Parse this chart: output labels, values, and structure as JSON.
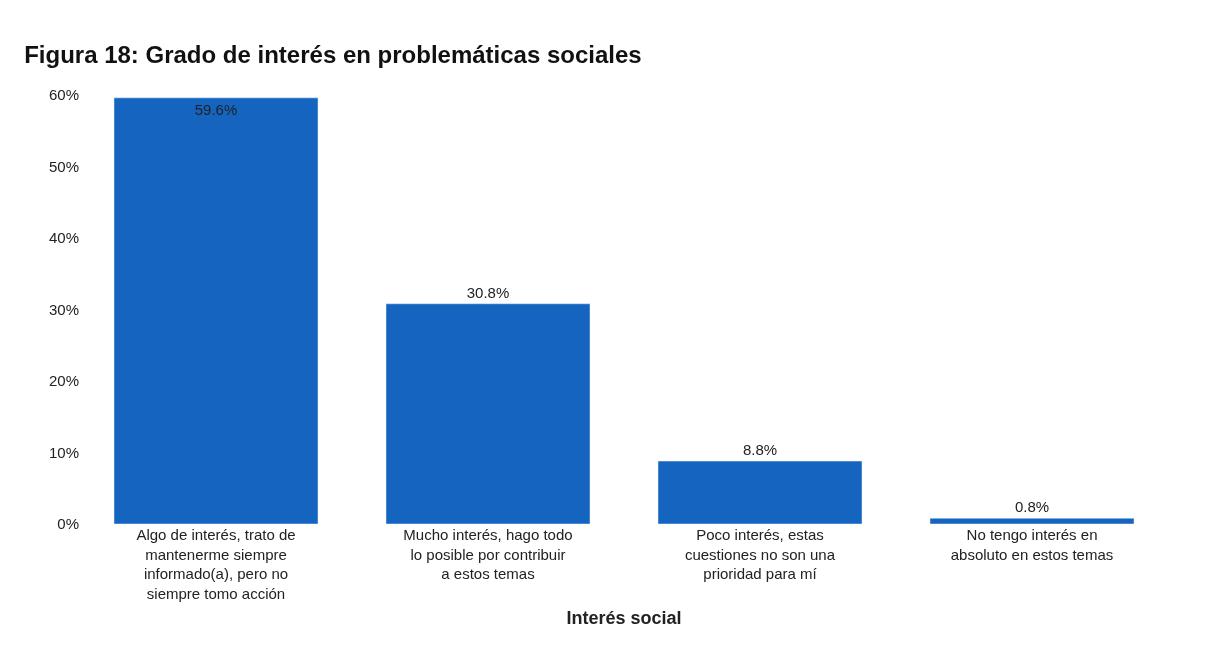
{
  "chart_data": {
    "type": "bar",
    "title": "Figura 18: Grado de interés en problemáticas sociales",
    "xlabel": "Interés social",
    "categories": [
      "Algo de interés, trato de mantenerme siempre informado(a), pero no siempre tomo acción",
      "Mucho interés, hago todo lo posible por contribuir a estos temas",
      "Poco interés, estas cuestiones no son una prioridad para mí",
      "No tengo interés en absoluto en estos temas"
    ],
    "values": [
      59.6,
      30.8,
      8.8,
      0.8
    ],
    "value_labels": [
      "59.6%",
      "30.8%",
      "8.8%",
      "0.8%"
    ],
    "color": "#1565c0",
    "ylim": [
      0,
      60
    ],
    "yticks": [
      {
        "value": 0,
        "label": "0%"
      },
      {
        "value": 10,
        "label": "10%"
      },
      {
        "value": 20,
        "label": "20%"
      },
      {
        "value": 30,
        "label": "30%"
      },
      {
        "value": 40,
        "label": "40%"
      },
      {
        "value": 50,
        "label": "50%"
      },
      {
        "value": 60,
        "label": "60%"
      }
    ],
    "legend": false
  }
}
